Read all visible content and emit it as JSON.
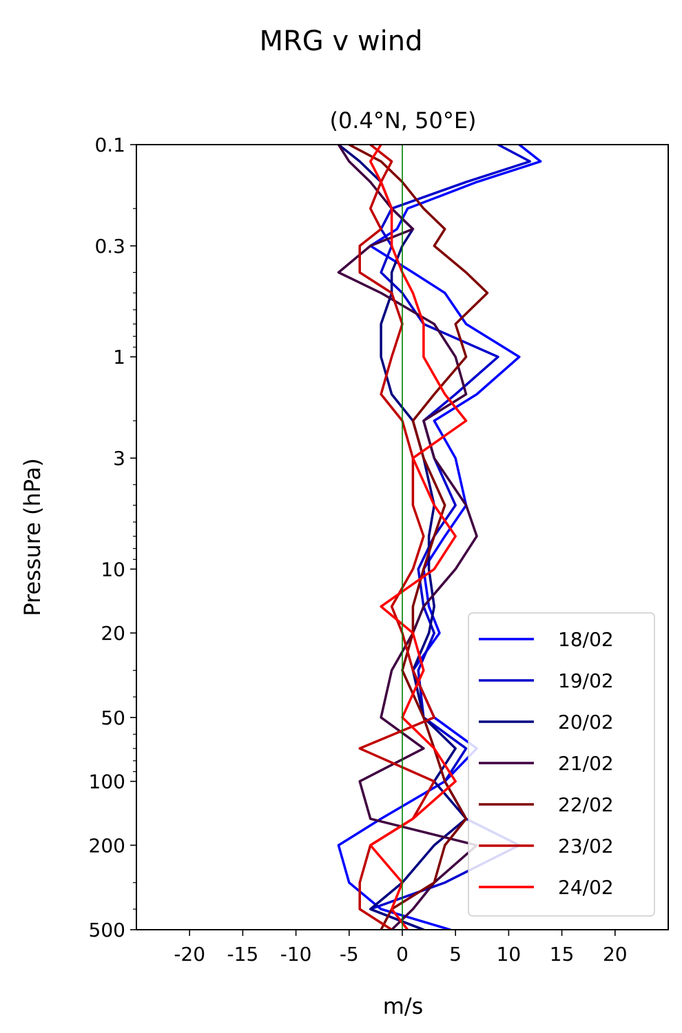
{
  "chart_data": {
    "type": "line",
    "title": "MRG v wind",
    "subtitle": "(0.4°N, 50°E)",
    "xlabel": "m/s",
    "ylabel": "Pressure (hPa)",
    "xlim": [
      -25,
      25
    ],
    "ylim": [
      500,
      0.1
    ],
    "yscale": "log",
    "xticks": [
      -20,
      -15,
      -10,
      -5,
      0,
      5,
      10,
      15,
      20
    ],
    "xtick_labels": [
      "-20",
      "-15",
      "-10",
      "-5",
      "0",
      "5",
      "10",
      "15",
      "20"
    ],
    "yticks": [
      0.1,
      0.3,
      1,
      3,
      10,
      20,
      50,
      100,
      200,
      500
    ],
    "ytick_labels": [
      "0.1",
      "0.3",
      "1",
      "3",
      "10",
      "20",
      "50",
      "100",
      "200",
      "500"
    ],
    "zero_line_color": "#008000",
    "grid": false,
    "legend": {
      "position": "lower-right"
    },
    "pressure": [
      0.1,
      0.12,
      0.15,
      0.2,
      0.25,
      0.3,
      0.4,
      0.5,
      0.7,
      1.0,
      1.5,
      2.0,
      3.0,
      5.0,
      7.0,
      10,
      15,
      20,
      30,
      50,
      70,
      100,
      150,
      200,
      300,
      400,
      500
    ],
    "series": [
      {
        "name": "18/02",
        "color": "#0000ff",
        "values": [
          11,
          13,
          7,
          0.5,
          -0.5,
          -3,
          1,
          4,
          6,
          11,
          7,
          3,
          5,
          6,
          4,
          2,
          2.5,
          3.5,
          1,
          3,
          7,
          4,
          -2,
          -6,
          -5,
          -2,
          4.5
        ]
      },
      {
        "name": "19/02",
        "color": "#0000cc",
        "values": [
          9,
          12,
          6,
          -1,
          -2,
          -1,
          -2,
          0,
          2,
          9,
          5,
          2,
          3,
          5,
          3,
          1.5,
          2,
          3,
          1.5,
          2,
          6,
          4,
          6,
          11,
          4,
          -3,
          2
        ]
      },
      {
        "name": "20/02",
        "color": "#000080",
        "values": [
          -6,
          -4,
          -2,
          -1,
          1,
          0,
          -1,
          -1,
          -2,
          -2,
          -1,
          1,
          2,
          3,
          2.5,
          2.5,
          3,
          2.5,
          1,
          2,
          5,
          3,
          6,
          3,
          0,
          -3,
          2
        ]
      },
      {
        "name": "21/02",
        "color": "#400040",
        "values": [
          -6,
          -5,
          -3,
          -1,
          1,
          -3,
          -6,
          -2,
          3,
          5,
          6,
          2,
          3,
          6,
          7,
          5,
          2,
          1,
          -1,
          -2,
          2,
          -4,
          -3,
          7,
          3,
          1,
          -1
        ]
      },
      {
        "name": "22/02",
        "color": "#800000",
        "values": [
          -5,
          -2,
          0,
          2,
          4,
          3,
          6,
          8,
          5,
          6,
          3,
          1,
          2,
          4,
          3,
          2,
          1,
          1,
          0,
          2,
          3,
          4,
          6,
          4,
          3,
          -1,
          -2
        ]
      },
      {
        "name": "23/02",
        "color": "#c00000",
        "values": [
          -3,
          -1,
          -2,
          -3,
          -2,
          -4,
          -4,
          -1,
          0,
          -1,
          -2,
          0,
          1,
          1,
          2,
          1,
          -1,
          0,
          1,
          3,
          -4,
          3,
          1,
          -3,
          -4,
          -4,
          -1
        ]
      },
      {
        "name": "24/02",
        "color": "#ff0000",
        "values": [
          -2,
          -3,
          -2,
          -1,
          -1,
          -1,
          0,
          1,
          2,
          2,
          4,
          6,
          1,
          3,
          5,
          3,
          -2,
          1,
          2,
          0,
          3,
          5,
          1,
          -3,
          0,
          -1,
          0.5
        ]
      }
    ]
  }
}
